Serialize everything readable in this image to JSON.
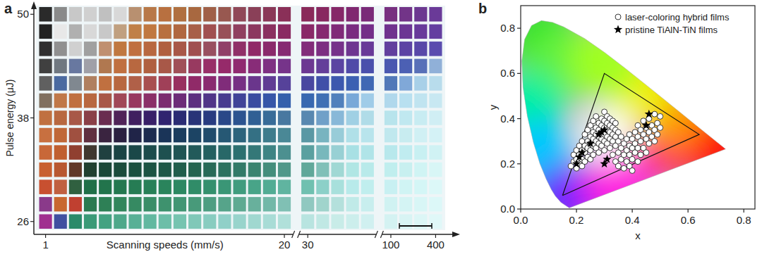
{
  "chart_data": [
    {
      "type": "heatmap",
      "title": "a",
      "xlabel": "Scanning speeds (mm/s)",
      "ylabel": "Pulse energy (μJ)",
      "categories": [
        "1",
        null,
        null,
        null,
        null,
        null,
        null,
        null,
        null,
        null,
        null,
        null,
        null,
        null,
        null,
        null,
        "20",
        "30",
        null,
        null,
        null,
        null,
        "100",
        null,
        null,
        "400"
      ],
      "y": [
        26,
        28,
        30,
        32,
        34,
        36,
        38,
        40,
        42,
        44,
        46,
        48,
        50
      ],
      "ylim": [
        25,
        51
      ],
      "yticks": [
        26,
        38,
        50
      ],
      "cells": [
        [
          "#a03090",
          "#4050a0",
          "#2a8a6a",
          "#3a9a78",
          "#44a282",
          "#4ea88a",
          "#58b096",
          "#62b8a0",
          "#6cbea8",
          "#76c4b0",
          "#80c8b8",
          "#88ccc0",
          "#90d0c8",
          "#98d4cc",
          "#a0d8d0",
          "#a8dcd6",
          "#b0e0da",
          "#b8e4e0",
          "#c0e8e4",
          "#c8ece8",
          "#cceeec",
          "#d0f0f0",
          "#d4f2f2",
          "#d8f4f4",
          "#dcf6f6",
          "#e0f8f8"
        ],
        [
          "#8a3a8a",
          "#c86830",
          "#c04030",
          "#2a7a50",
          "#2e8056",
          "#32865c",
          "#368a62",
          "#3a8e68",
          "#3e926e",
          "#429674",
          "#489a7a",
          "#4e9e82",
          "#56a48a",
          "#5eaa92",
          "#68b09c",
          "#72b8a8",
          "#80c0b4",
          "#90c8c0",
          "#a0d4cc",
          "#b4e0dc",
          "#c0eae8",
          "#c8eeee",
          "#d0f2f2",
          "#d4f4f4",
          "#d8f6f6",
          "#dcf8f8"
        ],
        [
          "#c85030",
          "#c06040",
          "#306040",
          "#207048",
          "#22744c",
          "#247850",
          "#267c54",
          "#288058",
          "#2a845c",
          "#2c8862",
          "#308c68",
          "#34906e",
          "#3a9676",
          "#409c7e",
          "#48a488",
          "#52ac94",
          "#60b4a0",
          "#70c0b0",
          "#8cd0c8",
          "#a8e0dc",
          "#b8eaea",
          "#c0eeee",
          "#c8f0f2",
          "#d0f4f4",
          "#d4f6f6",
          "#dcf8f8"
        ],
        [
          "#c86030",
          "#b85830",
          "#603828",
          "#204030",
          "#1a4838",
          "#1a4c3c",
          "#1a5040",
          "#1c5444",
          "#1e5848",
          "#205e4c",
          "#246450",
          "#286a58",
          "#2c7260",
          "#327a68",
          "#3a8470",
          "#448e7c",
          "#50988a",
          "#60a89a",
          "#80c0b8",
          "#a0d8d4",
          "#b0e6e4",
          "#b8eaea",
          "#c0eeee",
          "#c8f0f0",
          "#d0f4f4",
          "#d8f6f6"
        ],
        [
          "#c86838",
          "#c06030",
          "#904030",
          "#403830",
          "#204040",
          "#1a4444",
          "#1a4848",
          "#1c4c4c",
          "#1e5050",
          "#205454",
          "#225a5a",
          "#246060",
          "#286868",
          "#2c7070",
          "#347878",
          "#3e8484",
          "#4c9090",
          "#5aa0a0",
          "#78b8bc",
          "#98d0d4",
          "#a8e0e4",
          "#b0e4e8",
          "#b8e8ec",
          "#c0ecf0",
          "#c8f0f2",
          "#d0f2f4"
        ],
        [
          "#c87040",
          "#c06838",
          "#a05040",
          "#603040",
          "#3a2440",
          "#2a2040",
          "#202448",
          "#1c2c50",
          "#1a3458",
          "#1a3c5e",
          "#1c4464",
          "#204c6c",
          "#265874",
          "#2c647c",
          "#347084",
          "#3e7c8c",
          "#4a8896",
          "#5a98a4",
          "#78b4c0",
          "#98ccd8",
          "#b0e0e8",
          "#b8e4ec",
          "#c0e8ee",
          "#c8ecf0",
          "#d0f0f4",
          "#d4f2f6"
        ],
        [
          "#c07040",
          "#b86840",
          "#a85848",
          "#8a4048",
          "#6a2c50",
          "#502458",
          "#402060",
          "#382068",
          "#302470",
          "#2a2c74",
          "#283478",
          "#283c80",
          "#2a4888",
          "#2c5490",
          "#306094",
          "#386c98",
          "#4878a0",
          "#5888b0",
          "#70a0c8",
          "#88b8d8",
          "#a0d0e4",
          "#b0dce8",
          "#b8e4ec",
          "#c0e8f0",
          "#c8ecf2",
          "#d0eef4"
        ],
        [
          "#807060",
          "#c07848",
          "#c07040",
          "#b86840",
          "#a85848",
          "#a04858",
          "#983860",
          "#8a3068",
          "#7c2c70",
          "#6c2c78",
          "#5c3080",
          "#503688",
          "#483c90",
          "#404498",
          "#3a4ca0",
          "#3656a8",
          "#3460ac",
          "#3868b0",
          "#4070b4",
          "#5080bc",
          "#78a8d8",
          "#a0cce8",
          "#b0d8ec",
          "#b8e0f0",
          "#c0e4f0",
          "#c8e8f2"
        ],
        [
          "#606060",
          "#4a6aa0",
          "#808890",
          "#b08060",
          "#c07040",
          "#b86840",
          "#b06048",
          "#a85050",
          "#a04058",
          "#983060",
          "#902a68",
          "#8a2a70",
          "#802c7a",
          "#763084",
          "#6a368c",
          "#603c94",
          "#56429a",
          "#4a48a0",
          "#4050a8",
          "#3c58ae",
          "#3c60b2",
          "#4068b4",
          "#5078b8",
          "#80a8d8",
          "#a8d0e8",
          "#b8dcec"
        ],
        [
          "#404040",
          "#707880",
          "#6878a0",
          "#a0a0a8",
          "#b07850",
          "#c07040",
          "#b86840",
          "#b06040",
          "#a85848",
          "#a05058",
          "#983a60",
          "#983068",
          "#962a6a",
          "#902a70",
          "#882c78",
          "#7e3082",
          "#76348a",
          "#6c3892",
          "#643e9a",
          "#5a44a2",
          "#504aa8",
          "#4a50ac",
          "#4a58b0",
          "#4c60b4",
          "#5870b8",
          "#90b0d8"
        ],
        [
          "#303030",
          "#909090",
          "#d0d0d0",
          "#a0a0a0",
          "#c09070",
          "#c07840",
          "#c07040",
          "#b86840",
          "#b06040",
          "#a85848",
          "#a05050",
          "#985060",
          "#904068",
          "#903068",
          "#902a68",
          "#8a2a6c",
          "#862a72",
          "#822c7a",
          "#7c2e82",
          "#76328a",
          "#6e3690",
          "#683a98",
          "#62409e",
          "#5c44a4",
          "#5848a8",
          "#5a4cae"
        ],
        [
          "#222222",
          "#e8e8e8",
          "#b0b0b0",
          "#d8d8d8",
          "#c8c8c8",
          "#c0a080",
          "#c08048",
          "#c07840",
          "#b87040",
          "#b06840",
          "#a86048",
          "#a05050",
          "#985058",
          "#904060",
          "#8c3860",
          "#8a3060",
          "#8a2a62",
          "#8a2868",
          "#862870",
          "#802a78",
          "#7a2c80",
          "#742e88",
          "#70328e",
          "#6c3694",
          "#683a9a",
          "#643ea0"
        ],
        [
          "#2a2a2a",
          "#8a8a8a",
          "#c8c8c8",
          "#d0d0d0",
          "#c0c0c0",
          "#d8d8d8",
          "#b89070",
          "#b87848",
          "#b87040",
          "#b07040",
          "#a86840",
          "#a06048",
          "#985850",
          "#904858",
          "#8a4058",
          "#8a3858",
          "#8a3058",
          "#8a2a5a",
          "#882860",
          "#862868",
          "#802870",
          "#7a2a78",
          "#783080",
          "#723488",
          "#6c3890",
          "#6a3a98"
        ]
      ]
    },
    {
      "type": "scatter",
      "title": "b",
      "xlabel": "x",
      "ylabel": "y",
      "xlim": [
        0,
        0.84
      ],
      "ylim": [
        0,
        0.9
      ],
      "xticks": [
        {
          "value": 0,
          "label": "0.0"
        },
        0.2,
        0.4,
        0.6,
        0.8
      ],
      "yticks": [
        {
          "value": 0,
          "label": "0.0"
        },
        0.2,
        0.4,
        0.6,
        0.8
      ],
      "legend": "upper right",
      "series": [
        {
          "type": "area",
          "x": [
            0.1741,
            0.144,
            0.1241,
            0.1096,
            0.0913,
            0.0687,
            0.0454,
            0.0235,
            0.0082,
            0.0039,
            0.0139,
            0.0389,
            0.0743,
            0.1142,
            0.1547,
            0.2296,
            0.3016,
            0.3731,
            0.4441,
            0.5125,
            0.5752,
            0.627,
            0.6915,
            0.7347
          ],
          "values": [
            0.005,
            0.0297,
            0.0578,
            0.0868,
            0.1327,
            0.2007,
            0.295,
            0.4127,
            0.5384,
            0.6548,
            0.7502,
            0.812,
            0.8338,
            0.8262,
            0.8059,
            0.7543,
            0.6923,
            0.6245,
            0.5547,
            0.4866,
            0.4242,
            0.3725,
            0.3083,
            0.2653
          ]
        },
        {
          "type": "line",
          "color": "#111111",
          "x": [
            0.15,
            0.3,
            0.64,
            0.15
          ],
          "values": [
            0.06,
            0.6,
            0.33,
            0.06
          ]
        },
        {
          "name": "laser-coloring hybrid films",
          "type": "scatter",
          "marker": "circle",
          "color": "#ffffff",
          "x": [
            0.18,
            0.19,
            0.19,
            0.2,
            0.2,
            0.2,
            0.21,
            0.21,
            0.21,
            0.22,
            0.22,
            0.22,
            0.22,
            0.23,
            0.23,
            0.23,
            0.23,
            0.24,
            0.24,
            0.24,
            0.24,
            0.25,
            0.25,
            0.25,
            0.25,
            0.25,
            0.26,
            0.26,
            0.26,
            0.26,
            0.26,
            0.27,
            0.27,
            0.27,
            0.27,
            0.27,
            0.28,
            0.28,
            0.28,
            0.28,
            0.28,
            0.29,
            0.29,
            0.29,
            0.29,
            0.29,
            0.3,
            0.3,
            0.3,
            0.3,
            0.3,
            0.3,
            0.31,
            0.31,
            0.31,
            0.31,
            0.31,
            0.32,
            0.32,
            0.32,
            0.32,
            0.32,
            0.33,
            0.33,
            0.33,
            0.33,
            0.33,
            0.34,
            0.34,
            0.34,
            0.34,
            0.34,
            0.35,
            0.35,
            0.35,
            0.35,
            0.36,
            0.36,
            0.36,
            0.37,
            0.37,
            0.37,
            0.38,
            0.38,
            0.38,
            0.39,
            0.39,
            0.39,
            0.39,
            0.4,
            0.4,
            0.4,
            0.4,
            0.41,
            0.41,
            0.41,
            0.42,
            0.42,
            0.42,
            0.42,
            0.43,
            0.43,
            0.43,
            0.44,
            0.44,
            0.44,
            0.45,
            0.45,
            0.45,
            0.46,
            0.46,
            0.46,
            0.47,
            0.47,
            0.48,
            0.48,
            0.48,
            0.49,
            0.49,
            0.5,
            0.5
          ],
          "values": [
            0.19,
            0.21,
            0.24,
            0.18,
            0.22,
            0.26,
            0.2,
            0.24,
            0.28,
            0.19,
            0.22,
            0.26,
            0.3,
            0.21,
            0.25,
            0.28,
            0.33,
            0.23,
            0.27,
            0.3,
            0.35,
            0.22,
            0.26,
            0.29,
            0.32,
            0.37,
            0.24,
            0.28,
            0.31,
            0.34,
            0.39,
            0.27,
            0.3,
            0.33,
            0.36,
            0.41,
            0.25,
            0.29,
            0.32,
            0.35,
            0.38,
            0.28,
            0.31,
            0.34,
            0.37,
            0.4,
            0.26,
            0.3,
            0.33,
            0.36,
            0.39,
            0.43,
            0.29,
            0.32,
            0.35,
            0.38,
            0.41,
            0.27,
            0.31,
            0.34,
            0.37,
            0.4,
            0.24,
            0.3,
            0.33,
            0.36,
            0.39,
            0.21,
            0.28,
            0.32,
            0.35,
            0.38,
            0.19,
            0.25,
            0.3,
            0.34,
            0.22,
            0.27,
            0.32,
            0.18,
            0.24,
            0.29,
            0.21,
            0.26,
            0.31,
            0.19,
            0.24,
            0.28,
            0.33,
            0.17,
            0.22,
            0.27,
            0.31,
            0.25,
            0.29,
            0.34,
            0.21,
            0.27,
            0.32,
            0.37,
            0.24,
            0.3,
            0.35,
            0.27,
            0.33,
            0.39,
            0.25,
            0.31,
            0.36,
            0.29,
            0.34,
            0.4,
            0.32,
            0.37,
            0.3,
            0.35,
            0.42,
            0.33,
            0.38,
            0.36,
            0.41
          ]
        },
        {
          "name": "pristine TiAlN-TiN films",
          "type": "scatter",
          "marker": "star",
          "color": "#000000",
          "x": [
            0.2,
            0.21,
            0.22,
            0.25,
            0.28,
            0.29,
            0.3,
            0.3,
            0.31,
            0.45,
            0.46
          ],
          "values": [
            0.2,
            0.23,
            0.25,
            0.29,
            0.33,
            0.34,
            0.35,
            0.2,
            0.22,
            0.37,
            0.42
          ]
        }
      ]
    }
  ]
}
